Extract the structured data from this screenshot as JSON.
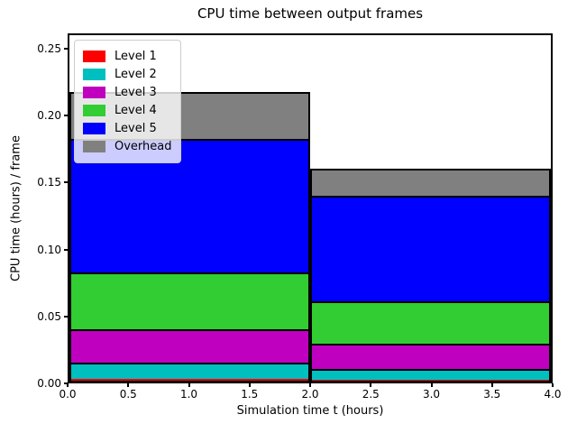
{
  "chart_data": {
    "type": "bar",
    "stacked": true,
    "title": "CPU time between output frames",
    "xlabel": "Simulation time t (hours)",
    "ylabel": "CPU time (hours) / frame",
    "xlim": [
      0,
      4
    ],
    "ylim": [
      0,
      0.2614
    ],
    "grid": false,
    "legend_position": "upper-left",
    "xticks": [
      "0.0",
      "0.5",
      "1.0",
      "1.5",
      "2.0",
      "2.5",
      "3.0",
      "3.5",
      "4.0"
    ],
    "yticks": [
      "0.00",
      "0.05",
      "0.10",
      "0.15",
      "0.20",
      "0.25"
    ],
    "bars": [
      {
        "x_start": 0,
        "x_end": 2
      },
      {
        "x_start": 2,
        "x_end": 4
      }
    ],
    "series": [
      {
        "name": "Level 1",
        "color": "#ff0000",
        "values": [
          0.0015,
          0.0008
        ]
      },
      {
        "name": "Level 2",
        "color": "#00bfbf",
        "values": [
          0.0122,
          0.0078
        ]
      },
      {
        "name": "Level 3",
        "color": "#bf00bf",
        "values": [
          0.0254,
          0.0192
        ]
      },
      {
        "name": "Level 4",
        "color": "#32cd32",
        "values": [
          0.0424,
          0.0324
        ]
      },
      {
        "name": "Level 5",
        "color": "#0000ff",
        "values": [
          0.1007,
          0.0795
        ]
      },
      {
        "name": "Overhead",
        "color": "#808080",
        "values": [
          0.0355,
          0.0205
        ]
      }
    ],
    "bar_totals": [
      0.2177,
      0.1602
    ],
    "edge_color": "#000000",
    "background_color": "#ffffff"
  }
}
